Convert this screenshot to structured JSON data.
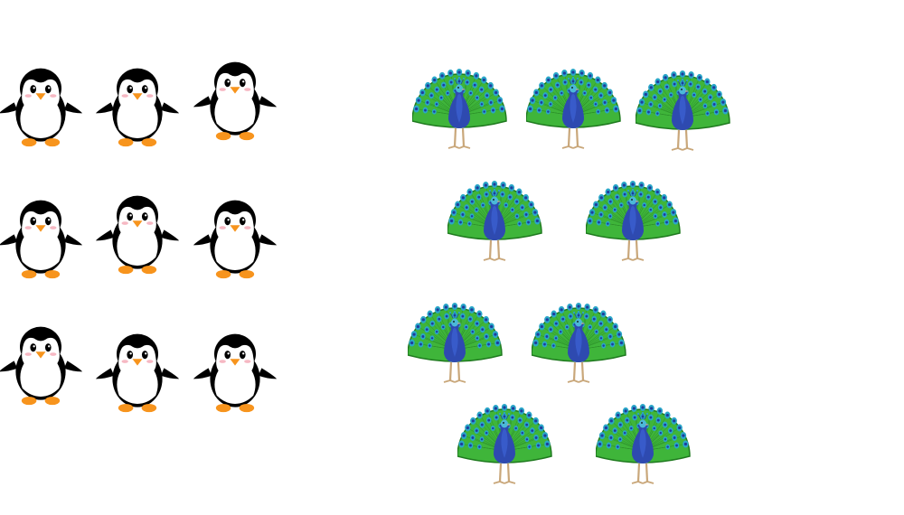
{
  "scene": {
    "background": "#ffffff",
    "groups": [
      {
        "name": "penguins",
        "icon": "penguin-icon",
        "count": 9,
        "colors": {
          "body": "#000000",
          "belly": "#ffffff",
          "beak": "#f7941d",
          "feet": "#f7941d",
          "cheek": "#f4a6b4"
        }
      },
      {
        "name": "peacocks",
        "icon": "peacock-icon",
        "count": 9,
        "colors": {
          "fan": "#3fb53a",
          "fanEdge": "#1f7a1f",
          "eyeOuter": "#2aa6c8",
          "eyeInner": "#1e3c9c",
          "body": "#2e4ab0",
          "legs": "#c9a77a"
        }
      }
    ]
  }
}
